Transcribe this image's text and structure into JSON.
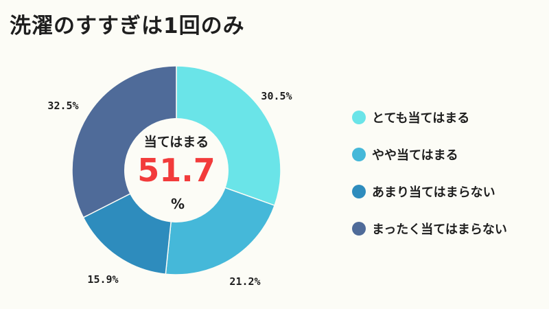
{
  "title": "洗濯のすすぎは1回のみ",
  "chart_data": {
    "type": "pie",
    "categories": [
      "とても当てはまる",
      "やや当てはまる",
      "あまり当てはまらない",
      "まったく当てはまらない"
    ],
    "values": [
      30.5,
      21.2,
      15.9,
      32.5
    ],
    "value_labels": [
      "30.5%",
      "21.2%",
      "15.9%",
      "32.5%"
    ],
    "colors": [
      "#6ae4e8",
      "#45b8d9",
      "#2e8cbd",
      "#4f6b99"
    ],
    "center": {
      "caption": "当てはまる",
      "value": "51.7",
      "unit": "%",
      "value_color": "#f23b3b"
    },
    "legend_position": "right"
  }
}
